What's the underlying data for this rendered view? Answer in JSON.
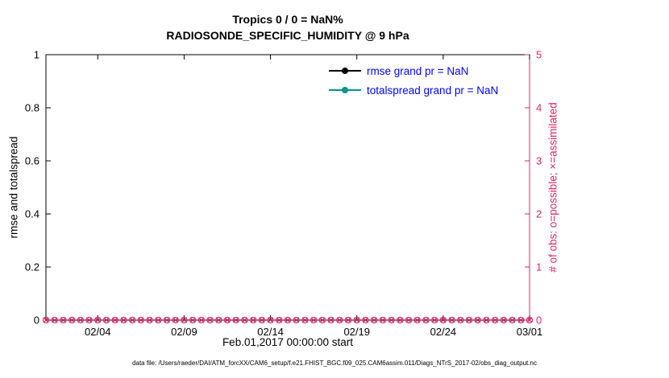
{
  "title": {
    "line1": "Tropics 0 / 0 = NaN%",
    "line2": "RADIOSONDE_SPECIFIC_HUMIDITY @ 9 hPa"
  },
  "footer": {
    "data_file": "data file: /Users/raeder/DAI/ATM_forcXX/CAM6_setup/f.e21.FHIST_BGC.f09_025.CAM6assim.011/Diags_NTrS_2017-02/obs_diag_output.nc"
  },
  "colors": {
    "right_axis": "#e02367",
    "legend_text": "#0000ff",
    "axis_black": "#000000"
  },
  "chart_data": {
    "type": "line",
    "title": "Tropics 0 / 0 = NaN%",
    "subtitle": "RADIOSONDE_SPECIFIC_HUMIDITY @ 9 hPa",
    "xlabel": "Feb.01,2017 00:00:00 start",
    "ylabel_left": "rmse and totalspread",
    "ylabel_right": "# of obs: o=possible; ×=assimilated",
    "grid": false,
    "legend_position": "top-right-inside",
    "legend_text_color": "#0000ff",
    "x_range_days": [
      0,
      28
    ],
    "x_ticks": [
      "02/04",
      "02/09",
      "02/14",
      "02/19",
      "02/24",
      "03/01"
    ],
    "x_tick_positions_days": [
      3,
      8,
      13,
      18,
      23,
      28
    ],
    "ylim_left": [
      0,
      1
    ],
    "yticks_left": [
      0,
      0.2,
      0.4,
      0.6,
      0.8,
      1
    ],
    "ytick_labels_left": [
      "0",
      "0.2",
      "0.4",
      "0.6",
      "0.8",
      "1"
    ],
    "ylim_right": [
      0,
      5
    ],
    "yticks_right": [
      0,
      1,
      2,
      3,
      4,
      5
    ],
    "ytick_labels_right": [
      "0",
      "1",
      "2",
      "3",
      "4",
      "5"
    ],
    "series": [
      {
        "name": "rmse grand pr = NaN",
        "color": "#000000",
        "values": []
      },
      {
        "name": "totalspread grand pr = NaN",
        "color": "#00968c",
        "values": []
      }
    ],
    "obs_markers": {
      "description": "possible (o) and assimilated (x) observation counts, all at 0",
      "value": 0,
      "count": 57,
      "marker_types": [
        "o",
        "x"
      ],
      "color": "#e02367"
    }
  }
}
